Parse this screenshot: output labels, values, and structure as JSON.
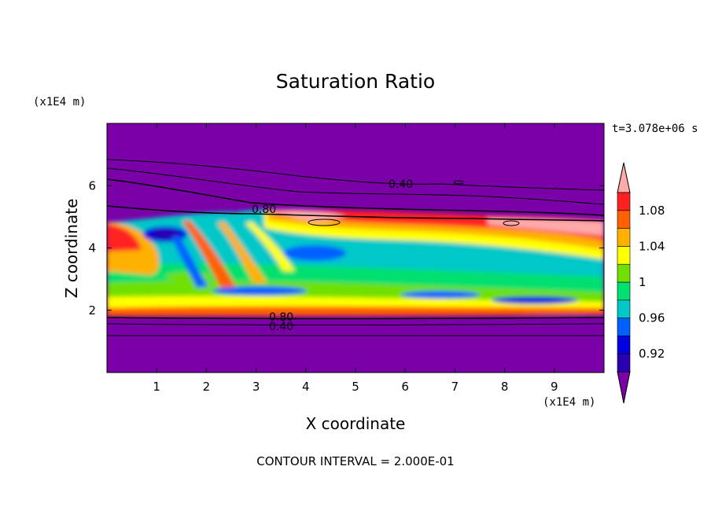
{
  "chart_data": {
    "type": "heatmap",
    "title": "Saturation Ratio",
    "xlabel": "X coordinate",
    "ylabel": "Z coordinate",
    "x_unit": "(x1E4 m)",
    "y_unit": "(x1E4 m)",
    "time_label": "t=3.078e+06 s",
    "footer": "CONTOUR INTERVAL = 2.000E-01",
    "xlim": [
      0,
      10
    ],
    "ylim": [
      0,
      8
    ],
    "x_ticks": [
      "1",
      "2",
      "3",
      "4",
      "5",
      "6",
      "7",
      "8",
      "9"
    ],
    "y_ticks": [
      "2",
      "4",
      "6"
    ],
    "colorbar": {
      "levels": [
        0.9,
        0.92,
        0.94,
        0.96,
        0.98,
        1.0,
        1.02,
        1.04,
        1.06,
        1.08,
        1.1
      ],
      "tick_labels": [
        "0.92",
        "0.96",
        "1",
        "1.04",
        "1.08"
      ],
      "tick_values": [
        0.92,
        0.96,
        1.0,
        1.04,
        1.08
      ],
      "colors": [
        "#7a00a8",
        "#2a00b0",
        "#0000e0",
        "#0060ff",
        "#00c8c8",
        "#00e070",
        "#70e000",
        "#ffff00",
        "#ffb000",
        "#ff6000",
        "#ff2020",
        "#ffaaaa"
      ],
      "extend": "both"
    },
    "contour_labels": [
      "0.40",
      "0.80",
      "0.80",
      "0.40"
    ]
  }
}
